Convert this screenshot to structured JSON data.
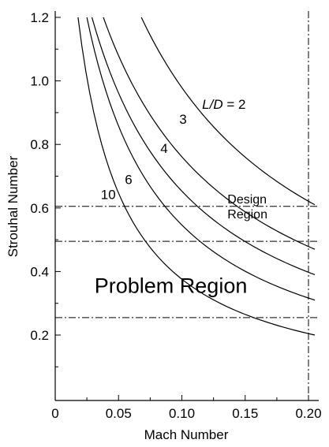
{
  "chart_data": {
    "type": "line",
    "title": "",
    "xlabel": "Mach Number",
    "ylabel": "Strouhal Number",
    "xlim": [
      0,
      0.21
    ],
    "ylim": [
      0.07,
      1.22
    ],
    "x_ticks": [
      {
        "value": 0,
        "label": "0"
      },
      {
        "value": 0.05,
        "label": "0.05"
      },
      {
        "value": 0.1,
        "label": "0.10"
      },
      {
        "value": 0.15,
        "label": "0.15"
      },
      {
        "value": 0.2,
        "label": "0.20"
      }
    ],
    "y_ticks": [
      {
        "value": 0.2,
        "label": "0.2"
      },
      {
        "value": 0.4,
        "label": "0.4"
      },
      {
        "value": 0.6,
        "label": "0.6"
      },
      {
        "value": 0.8,
        "label": "0.8"
      },
      {
        "value": 1.0,
        "label": "1.0"
      },
      {
        "value": 1.2,
        "label": "1.2"
      }
    ],
    "grid": false,
    "series": [
      {
        "name": "L/D = 2",
        "x_start": 0.068,
        "x_end": 0.205,
        "y_start": 1.2,
        "y_end": 0.61
      },
      {
        "name": "3",
        "x_start": 0.038,
        "x_end": 0.205,
        "y_start": 1.2,
        "y_end": 0.47
      },
      {
        "name": "4",
        "x_start": 0.029,
        "x_end": 0.205,
        "y_start": 1.2,
        "y_end": 0.39
      },
      {
        "name": "6",
        "x_start": 0.025,
        "x_end": 0.205,
        "y_start": 1.2,
        "y_end": 0.31
      },
      {
        "name": "10",
        "x_start": 0.018,
        "x_end": 0.205,
        "y_start": 1.2,
        "y_end": 0.2
      }
    ],
    "curve_labels": [
      {
        "prefix": "L/D",
        "text": " = 2",
        "x": 0.116,
        "y": 0.912
      },
      {
        "text": "3",
        "x": 0.098,
        "y": 0.865
      },
      {
        "text": "4",
        "x": 0.083,
        "y": 0.773
      },
      {
        "text": "6",
        "x": 0.055,
        "y": 0.675
      },
      {
        "text": "10",
        "x": 0.036,
        "y": 0.628
      }
    ],
    "reference_lines": {
      "horizontal": [
        0.605,
        0.495,
        0.255
      ],
      "vertical": [
        0.2
      ]
    },
    "annotations": [
      {
        "text": "Design",
        "x": 0.136,
        "y": 0.615
      },
      {
        "text": "Region",
        "x": 0.136,
        "y": 0.567
      },
      {
        "text": "Problem Region",
        "x": 0.031,
        "y": 0.333
      }
    ]
  }
}
